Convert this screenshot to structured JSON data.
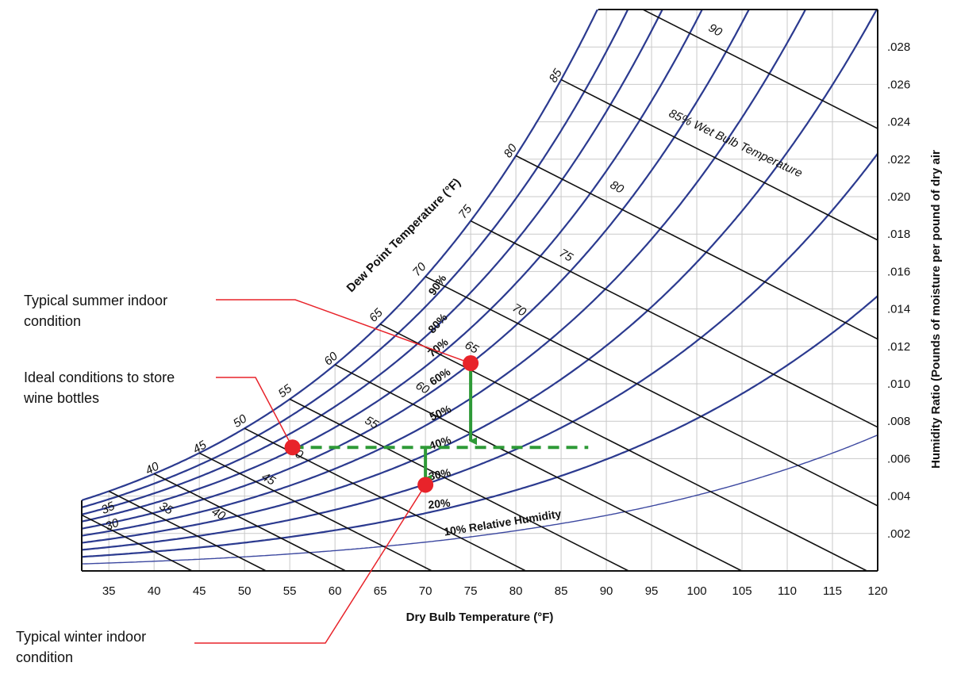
{
  "chart_data": {
    "type": "scatter",
    "title": "",
    "xlabel": "Dry Bulb Temperature (°F)",
    "ylabel": "Humidity Ratio (Pounds of moisture per pound of dry air",
    "xlim": [
      32,
      120
    ],
    "ylim": [
      0,
      0.03
    ],
    "x_ticks": [
      "35",
      "40",
      "45",
      "50",
      "55",
      "60",
      "65",
      "70",
      "75",
      "80",
      "85",
      "90",
      "95",
      "100",
      "105",
      "110",
      "115",
      "120"
    ],
    "y_ticks": [
      ".002",
      ".004",
      ".006",
      ".008",
      ".010",
      ".012",
      ".014",
      ".016",
      ".018",
      ".020",
      ".022",
      ".024",
      ".026",
      ".028"
    ],
    "y_tick_values": [
      0.002,
      0.004,
      0.006,
      0.008,
      0.01,
      0.012,
      0.014,
      0.016,
      0.018,
      0.02,
      0.022,
      0.024,
      0.026,
      0.028
    ],
    "grid": true,
    "dew_point_title": "Dew Point Temperature (°F)",
    "dew_point_labels": [
      "30",
      "35",
      "40",
      "45",
      "50",
      "55",
      "60",
      "65",
      "70",
      "75",
      "80",
      "85"
    ],
    "rh_labels": [
      "90%",
      "80%",
      "70%",
      "60%",
      "50%",
      "40%",
      "30%",
      "20%",
      "10% Relative Humidity"
    ],
    "rh_levels": [
      100,
      90,
      80,
      70,
      60,
      50,
      40,
      30,
      20,
      10
    ],
    "wb_labels": [
      "35",
      "40",
      "45",
      "50",
      "55",
      "60",
      "65",
      "70",
      "75",
      "80",
      "85% Wet Bulb Temperature",
      "90"
    ],
    "wb_values": [
      30,
      35,
      40,
      45,
      50,
      55,
      60,
      65,
      70,
      75,
      80,
      85,
      90
    ],
    "points": [
      {
        "name": "Typical summer indoor condition",
        "x": 75,
        "y": 0.0111
      },
      {
        "name": "Ideal conditions to store wine bottles",
        "x": 55.3,
        "y": 0.0066
      },
      {
        "name": "Typical winter indoor condition",
        "x": 70,
        "y": 0.0046
      }
    ],
    "arrows": [
      {
        "from": [
          75,
          0.0111
        ],
        "to": [
          75,
          0.0066
        ]
      },
      {
        "from": [
          70,
          0.0066
        ],
        "to": [
          70,
          0.0046
        ]
      }
    ],
    "dashed_line": {
      "x": [
        55.3,
        88
      ],
      "y": 0.0066
    },
    "colors": {
      "rh": "#2b3a8f",
      "wet_bulb": "#111111",
      "marker": "#e8232a",
      "arrow": "#2e9a37",
      "leader": "#e8232a"
    }
  },
  "callouts": {
    "summer": [
      "Typical summer indoor",
      "condition"
    ],
    "wine": [
      "Ideal conditions to store",
      "wine bottles"
    ],
    "winter": [
      "Typical winter indoor",
      "condition"
    ]
  }
}
